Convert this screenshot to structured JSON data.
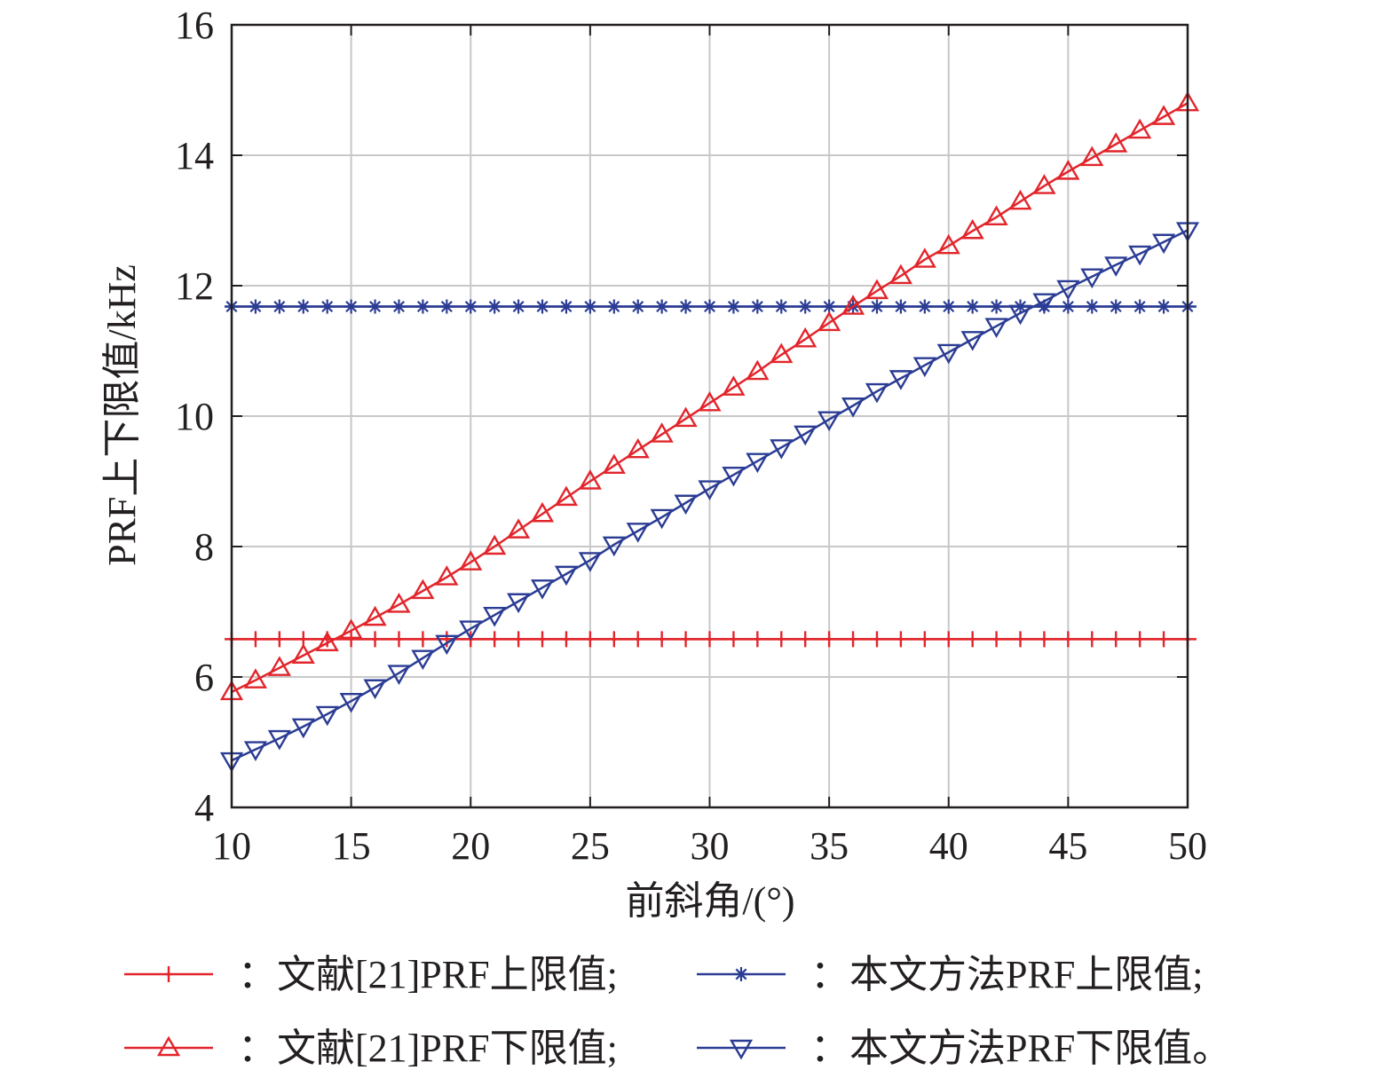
{
  "chart_data": {
    "type": "line",
    "xlabel": "前斜角/(°)",
    "ylabel": "PRF上下限值/kHz",
    "xlim": [
      10,
      50
    ],
    "ylim": [
      4,
      16
    ],
    "xticks": [
      10,
      15,
      20,
      25,
      30,
      35,
      40,
      45,
      50
    ],
    "yticks": [
      4,
      6,
      8,
      10,
      12,
      14,
      16
    ],
    "grid": true,
    "legend_position": "bottom",
    "x": [
      10,
      11,
      12,
      13,
      14,
      15,
      16,
      17,
      18,
      19,
      20,
      21,
      22,
      23,
      24,
      25,
      26,
      27,
      28,
      29,
      30,
      31,
      32,
      33,
      34,
      35,
      36,
      37,
      38,
      39,
      40,
      41,
      42,
      43,
      44,
      45,
      46,
      47,
      48,
      49,
      50
    ],
    "series": [
      {
        "name": "：文献[21]PRF上限值;",
        "color": "#e2252b",
        "marker": "plus",
        "values": [
          6.58,
          6.58,
          6.58,
          6.58,
          6.58,
          6.58,
          6.58,
          6.58,
          6.58,
          6.58,
          6.58,
          6.58,
          6.58,
          6.58,
          6.58,
          6.58,
          6.58,
          6.58,
          6.58,
          6.58,
          6.58,
          6.58,
          6.58,
          6.58,
          6.58,
          6.58,
          6.58,
          6.58,
          6.58,
          6.58,
          6.58,
          6.58,
          6.58,
          6.58,
          6.58,
          6.58,
          6.58,
          6.58,
          6.58,
          6.58,
          6.58
        ]
      },
      {
        "name": "：本文方法PRF上限值;",
        "color": "#2b3c94",
        "marker": "asterisk",
        "values": [
          11.68,
          11.68,
          11.68,
          11.68,
          11.68,
          11.68,
          11.68,
          11.68,
          11.68,
          11.68,
          11.68,
          11.68,
          11.68,
          11.68,
          11.68,
          11.68,
          11.68,
          11.68,
          11.68,
          11.68,
          11.68,
          11.68,
          11.68,
          11.68,
          11.68,
          11.68,
          11.68,
          11.68,
          11.68,
          11.68,
          11.68,
          11.68,
          11.68,
          11.68,
          11.68,
          11.68,
          11.68,
          11.68,
          11.68,
          11.68,
          11.68
        ]
      },
      {
        "name": "：文献[21]PRF下限值;",
        "color": "#e2252b",
        "marker": "triangle-up",
        "values": [
          5.77,
          5.95,
          6.14,
          6.33,
          6.52,
          6.71,
          6.91,
          7.11,
          7.32,
          7.53,
          7.76,
          8.0,
          8.25,
          8.5,
          8.75,
          9.0,
          9.24,
          9.48,
          9.72,
          9.96,
          10.2,
          10.44,
          10.68,
          10.94,
          11.18,
          11.43,
          11.68,
          11.92,
          12.15,
          12.4,
          12.61,
          12.84,
          13.05,
          13.29,
          13.53,
          13.75,
          13.96,
          14.17,
          14.38,
          14.59,
          14.8
        ]
      },
      {
        "name": "：本文方法PRF下限值。",
        "color": "#2b3c94",
        "marker": "triangle-down",
        "values": [
          4.72,
          4.89,
          5.06,
          5.24,
          5.43,
          5.63,
          5.84,
          6.06,
          6.29,
          6.52,
          6.74,
          6.95,
          7.16,
          7.37,
          7.58,
          7.79,
          8.03,
          8.24,
          8.45,
          8.67,
          8.89,
          9.1,
          9.31,
          9.52,
          9.73,
          9.95,
          10.16,
          10.38,
          10.58,
          10.78,
          10.98,
          11.18,
          11.38,
          11.58,
          11.76,
          11.96,
          12.14,
          12.32,
          12.49,
          12.67,
          12.85
        ]
      }
    ]
  }
}
